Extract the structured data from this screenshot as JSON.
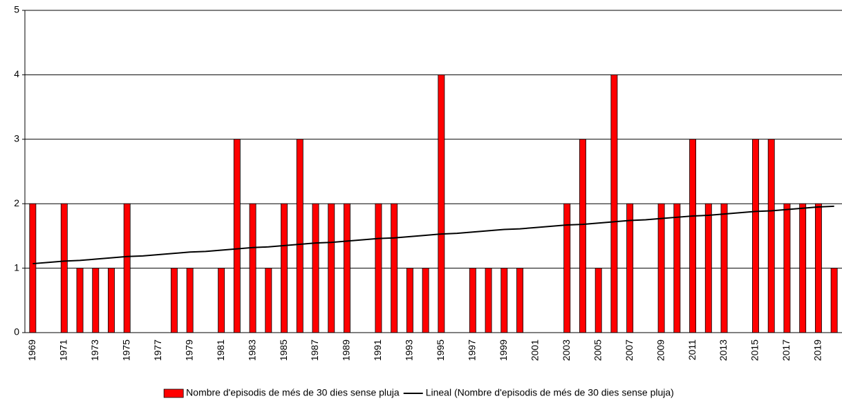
{
  "chart_data": {
    "type": "bar",
    "categories": [
      "1969",
      null,
      "1971",
      null,
      "1973",
      null,
      "1975",
      null,
      "1977",
      null,
      "1979",
      null,
      "1981",
      null,
      "1983",
      null,
      "1985",
      null,
      "1987",
      null,
      "1989",
      null,
      "1991",
      null,
      "1993",
      null,
      "1995",
      null,
      "1997",
      null,
      "1999",
      null,
      "2001",
      null,
      "2003",
      null,
      "2005",
      null,
      "2007",
      null,
      "2009",
      null,
      "2011",
      null,
      "2013",
      null,
      "2015",
      null,
      "2017",
      null,
      "2019",
      null
    ],
    "series": [
      {
        "name": "Nombre d'episodis de més de 30 dies sense pluja",
        "type": "bar",
        "color": "#ff0000",
        "values": [
          2,
          0,
          2,
          1,
          1,
          1,
          2,
          0,
          0,
          1,
          1,
          0,
          1,
          3,
          2,
          1,
          2,
          3,
          2,
          2,
          2,
          0,
          2,
          2,
          1,
          1,
          4,
          0,
          1,
          1,
          1,
          1,
          0,
          0,
          2,
          3,
          1,
          4,
          2,
          0,
          2,
          2,
          3,
          2,
          2,
          0,
          3,
          3,
          2,
          2,
          2,
          1
        ]
      },
      {
        "name": "Lineal (Nombre d'episodis de més de 30 dies sense pluja)",
        "type": "line",
        "color": "#000000",
        "values": [
          1.07,
          1.09,
          1.11,
          1.12,
          1.14,
          1.16,
          1.18,
          1.19,
          1.21,
          1.23,
          1.25,
          1.26,
          1.28,
          1.3,
          1.32,
          1.33,
          1.35,
          1.37,
          1.39,
          1.4,
          1.42,
          1.44,
          1.46,
          1.47,
          1.49,
          1.51,
          1.53,
          1.54,
          1.56,
          1.58,
          1.6,
          1.61,
          1.63,
          1.65,
          1.67,
          1.68,
          1.7,
          1.72,
          1.74,
          1.75,
          1.77,
          1.79,
          1.81,
          1.82,
          1.84,
          1.86,
          1.88,
          1.89,
          1.91,
          1.93,
          1.95,
          1.96
        ]
      }
    ],
    "ylim": [
      0,
      5
    ],
    "yticks": [
      0,
      1,
      2,
      3,
      4,
      5
    ],
    "grid": true,
    "legend": "bottom"
  }
}
